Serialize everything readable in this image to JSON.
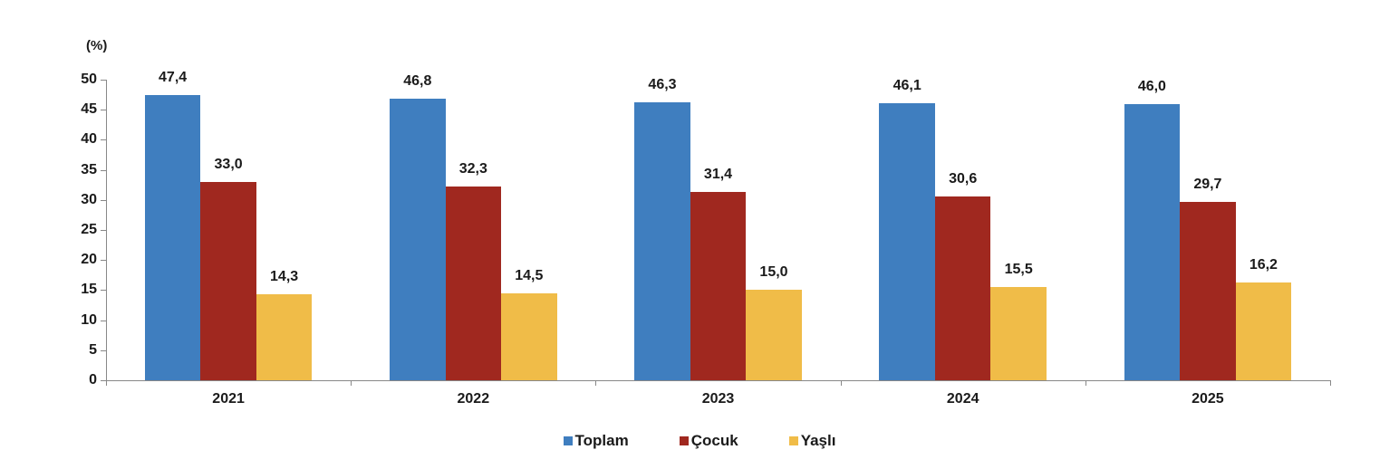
{
  "chart_data": {
    "type": "bar",
    "title": "",
    "xlabel": "",
    "ylabel": "(%)",
    "ylim": [
      0,
      50
    ],
    "yticks": [
      0,
      5,
      10,
      15,
      20,
      25,
      30,
      35,
      40,
      45,
      50
    ],
    "grid": false,
    "legend_position": "bottom",
    "categories": [
      "2021",
      "2022",
      "2023",
      "2024",
      "2025"
    ],
    "series": [
      {
        "name": "Toplam",
        "color": "#3f7ebf",
        "values": [
          47.4,
          46.8,
          46.3,
          46.1,
          46.0
        ],
        "labels": [
          "47,4",
          "46,8",
          "46,3",
          "46,1",
          "46,0"
        ]
      },
      {
        "name": "Çocuk",
        "color": "#a0281f",
        "values": [
          33.0,
          32.3,
          31.4,
          30.6,
          29.7
        ],
        "labels": [
          "33,0",
          "32,3",
          "31,4",
          "30,6",
          "29,7"
        ]
      },
      {
        "name": "Yaşlı",
        "color": "#f0bc48",
        "values": [
          14.3,
          14.5,
          15.0,
          15.5,
          16.2
        ],
        "labels": [
          "14,3",
          "14,5",
          "15,0",
          "15,5",
          "16,2"
        ]
      }
    ]
  }
}
